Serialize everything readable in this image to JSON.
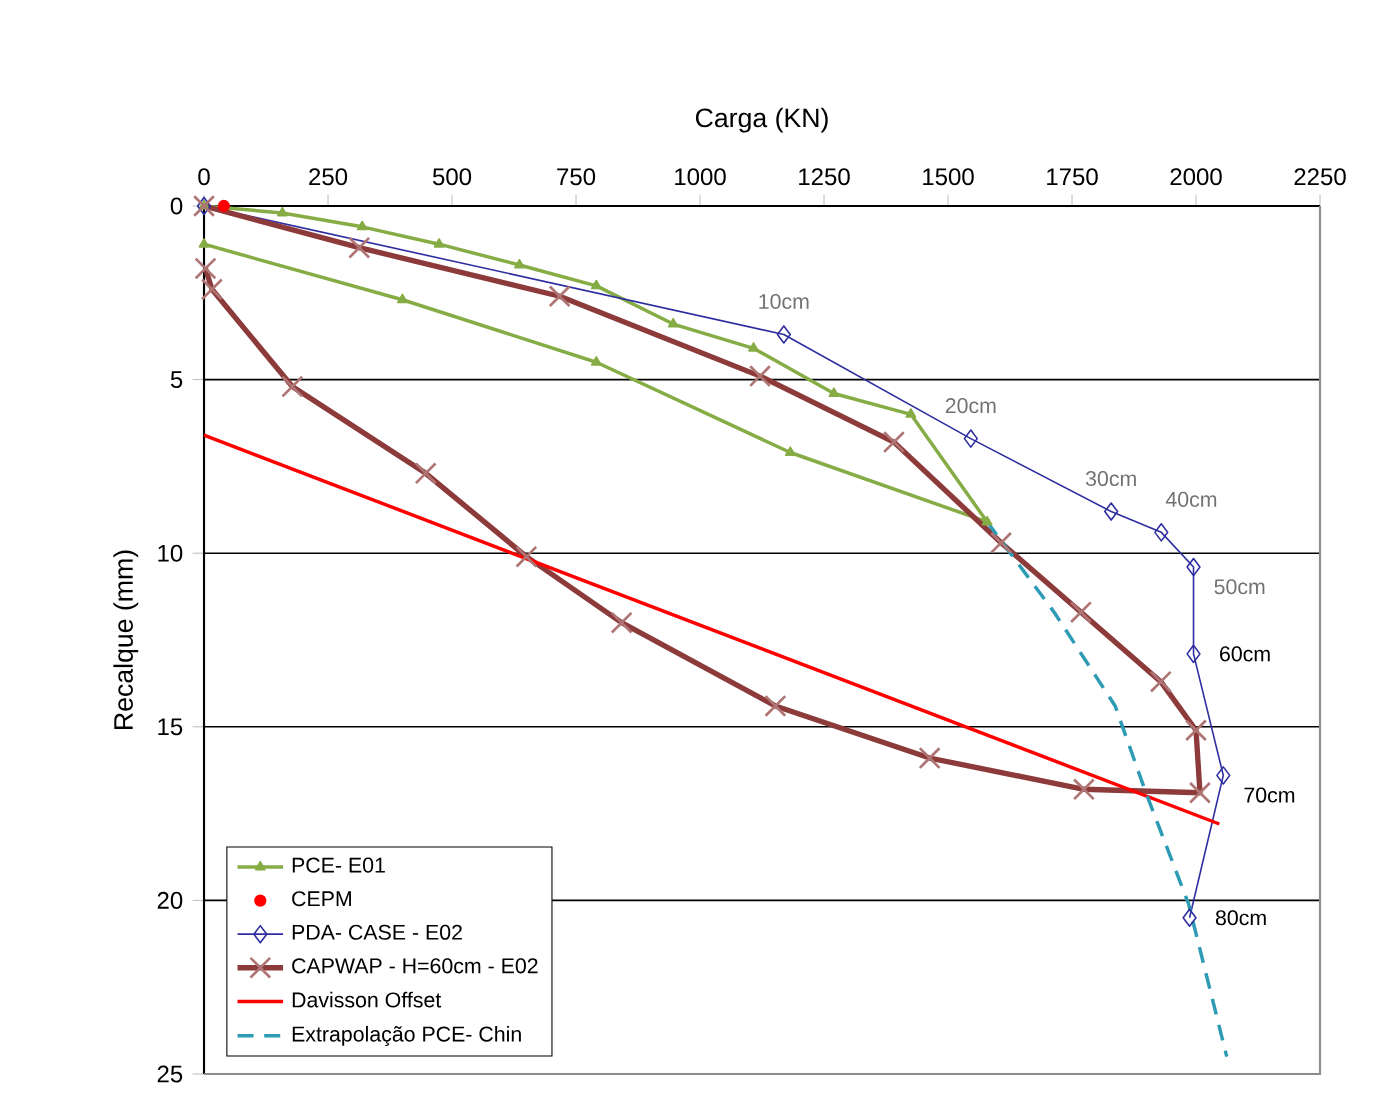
{
  "chart_data": {
    "type": "line",
    "xlabel": "Carga (KN)",
    "ylabel": "Recalque (mm)",
    "xlim": [
      0,
      2250
    ],
    "xticks": [
      0,
      250,
      500,
      750,
      1000,
      1250,
      1500,
      1750,
      2000,
      2250
    ],
    "ylim": [
      25,
      0
    ],
    "yticks": [
      0,
      5,
      10,
      15,
      20,
      25
    ],
    "grid": "y",
    "legend": "bottom left",
    "series": [
      {
        "name": "PCE- E01",
        "color": "#86ac45",
        "marker": "triangle",
        "line_style": "solid",
        "x": [
          0,
          158,
          319,
          474,
          636,
          791,
          946,
          1108,
          1270,
          1425,
          1579,
          1182,
          791,
          400,
          0
        ],
        "values": [
          0,
          0.2,
          0.6,
          1.1,
          1.7,
          2.3,
          3.4,
          4.1,
          5.4,
          6.0,
          9.1,
          7.1,
          4.5,
          2.7,
          1.1
        ]
      },
      {
        "name": "CEPM",
        "type": "scatter",
        "color": "#ff0000",
        "marker": "circle",
        "x": [
          40
        ],
        "values": [
          0
        ]
      },
      {
        "name": "PDA- CASE - E02",
        "color": "#2e2ea0",
        "marker": "diamond",
        "line_style": "solid",
        "x": [
          0,
          1169,
          1546,
          1829,
          1930,
          1995,
          1995,
          2055,
          1987
        ],
        "values": [
          0,
          3.7,
          6.7,
          8.8,
          9.4,
          10.4,
          12.9,
          16.4,
          20.5
        ]
      },
      {
        "name": "CAPWAP - H=60cm - E02",
        "color": "#8c3a3a",
        "marker": "cross",
        "line_style": "solid",
        "x": [
          0,
          313,
          717,
          1121,
          1391,
          1607,
          1768,
          1929,
          2000,
          2008,
          1774,
          1463,
          1152,
          842,
          650,
          447,
          178,
          16,
          3
        ],
        "values": [
          0,
          1.2,
          2.6,
          4.9,
          6.8,
          9.7,
          11.7,
          13.7,
          15.1,
          16.9,
          16.8,
          15.9,
          14.4,
          12.0,
          10.1,
          7.7,
          5.2,
          2.4,
          1.8
        ]
      },
      {
        "name": "Davisson Offset",
        "color": "#ff0000",
        "marker": "none",
        "line_style": "solid",
        "x": [
          0,
          2047
        ],
        "values": [
          6.6,
          17.8
        ]
      },
      {
        "name": "Extrapolação PCE- Chin",
        "color": "#2e9bb5",
        "marker": "none",
        "line_style": "dashed",
        "x": [
          1579,
          1714,
          1837,
          1899,
          1985,
          2062
        ],
        "values": [
          9.1,
          11.7,
          14.4,
          16.9,
          20.1,
          24.5
        ]
      }
    ],
    "annotations": [
      {
        "text": "10cm",
        "x": 1169,
        "y": 3.7
      },
      {
        "text": "20cm",
        "x": 1546,
        "y": 6.7
      },
      {
        "text": "30cm",
        "x": 1829,
        "y": 8.8
      },
      {
        "text": "40cm",
        "x": 1930,
        "y": 9.4
      },
      {
        "text": "50cm",
        "x": 1995,
        "y": 10.4
      },
      {
        "text": "60cm",
        "x": 1995,
        "y": 12.9
      },
      {
        "text": "70cm",
        "x": 2055,
        "y": 16.4
      },
      {
        "text": "80cm",
        "x": 1987,
        "y": 20.5
      }
    ]
  }
}
